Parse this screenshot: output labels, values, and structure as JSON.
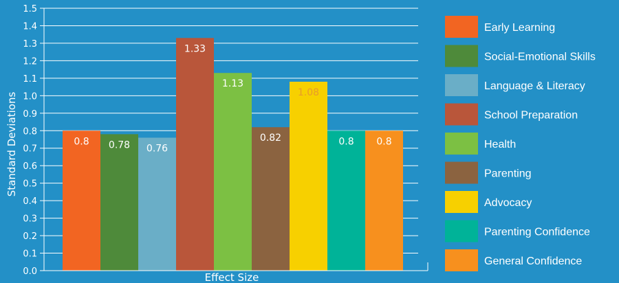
{
  "chart_data": {
    "type": "bar",
    "title": "",
    "xlabel": "Effect Size",
    "ylabel": "Standard Deviations",
    "ylim": [
      0,
      1.5
    ],
    "yticks": [
      "0.0",
      "0.1",
      "0.2",
      "0.3",
      "0.4",
      "0.5",
      "0.6",
      "0.7",
      "0.8",
      "0.9",
      "1.0",
      "1.1",
      "1.2",
      "1.3",
      "1.4",
      "1.5"
    ],
    "grid": true,
    "legend_position": "right",
    "categories": [
      "Early Learning",
      "Social-Emotional Skills",
      "Language & Literacy",
      "School Preparation",
      "Health",
      "Parenting",
      "Advocacy",
      "Parenting Confidence",
      "General Confidence"
    ],
    "values": [
      0.8,
      0.78,
      0.76,
      1.33,
      1.13,
      0.82,
      1.08,
      0.8,
      0.8
    ],
    "value_labels": [
      "0.8",
      "0.78",
      "0.76",
      "1.33",
      "1.13",
      "0.82",
      "1.08",
      "0.8",
      "0.8"
    ],
    "colors": [
      "#f26522",
      "#4e8a3a",
      "#6aaec7",
      "#b9563a",
      "#7cc043",
      "#8b6340",
      "#f7d000",
      "#00b398",
      "#f7901e"
    ],
    "label_colors": [
      "#ffffff",
      "#ffffff",
      "#ffffff",
      "#ffffff",
      "#ffffff",
      "#ffffff",
      "#e89a2c",
      "#ffffff",
      "#ffffff"
    ]
  }
}
